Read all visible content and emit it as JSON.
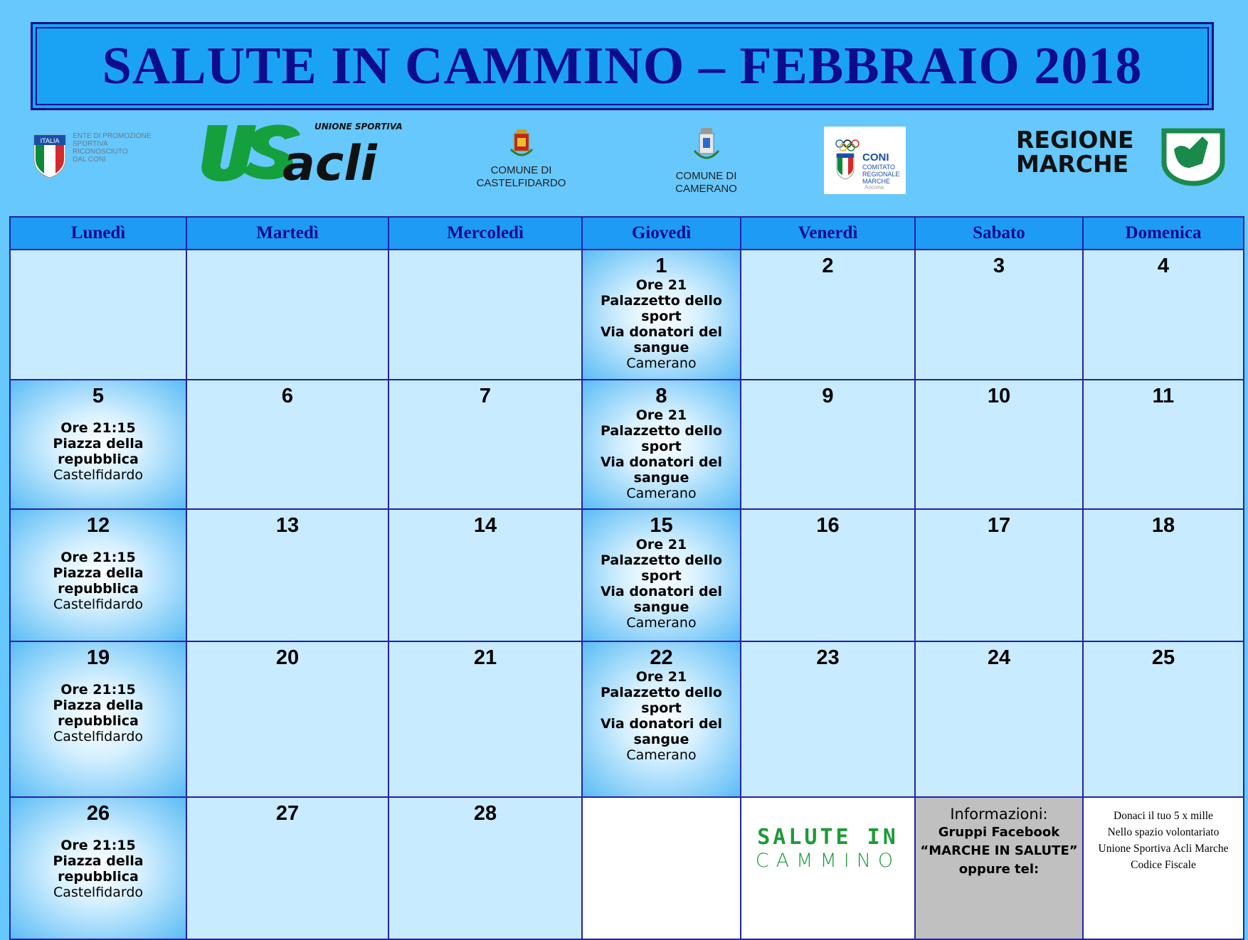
{
  "title": "SALUTE IN CAMMINO – FEBBRAIO 2018",
  "logos": {
    "coni_shield": "ITALIA",
    "coni_text": [
      "ENTE DI PROMOZIONE",
      "SPORTIVA",
      "RICONOSCIUTO",
      "DAL CONI"
    ],
    "usacli_tag": "UNIONE SPORTIVA",
    "usacli": "US acli",
    "comune1": [
      "COMUNE DI",
      "CASTELFIDARDO"
    ],
    "comune2": [
      "COMUNE DI",
      "CAMERANO"
    ],
    "coni_regional": [
      "CONI",
      "COMITATO REGIONALE MARCHE",
      "Ancona"
    ],
    "regione": [
      "REGIONE",
      "MARCHE"
    ]
  },
  "colors": {
    "background": "#66c8fc",
    "header": "#1d9bf5",
    "cell": "#c8ebff",
    "title_text": "#0c0c8c",
    "green": "#1e9a3a"
  },
  "days": [
    "Lunedì",
    "Martedì",
    "Mercoledì",
    "Giovedì",
    "Venerdì",
    "Sabato",
    "Domenica"
  ],
  "events": {
    "camerano": [
      "Ore 21",
      "Palazzetto dello sport",
      "Via donatori del sangue",
      "Camerano"
    ],
    "castelfidardo": [
      "Ore 21:15",
      "Piazza della repubblica",
      "Castelfidardo"
    ]
  },
  "weeks": [
    [
      "",
      "",
      "",
      "1",
      "2",
      "3",
      "4"
    ],
    [
      "5",
      "6",
      "7",
      "8",
      "9",
      "10",
      "11"
    ],
    [
      "12",
      "13",
      "14",
      "15",
      "16",
      "17",
      "18"
    ],
    [
      "19",
      "20",
      "21",
      "22",
      "23",
      "24",
      "25"
    ],
    [
      "26",
      "27",
      "28",
      "",
      "",
      "",
      ""
    ]
  ],
  "footer": {
    "salute_logo": [
      "SALUTE IN",
      "CAMMINO"
    ],
    "info_title": "Informazioni:",
    "info_lines": [
      "Gruppi Facebook",
      "“MARCHE IN SALUTE”",
      "oppure tel:"
    ],
    "donate_lines": [
      "Donaci  il tuo 5 x mille",
      "Nello spazio volontariato",
      "Unione Sportiva Acli Marche",
      "Codice Fiscale"
    ]
  }
}
